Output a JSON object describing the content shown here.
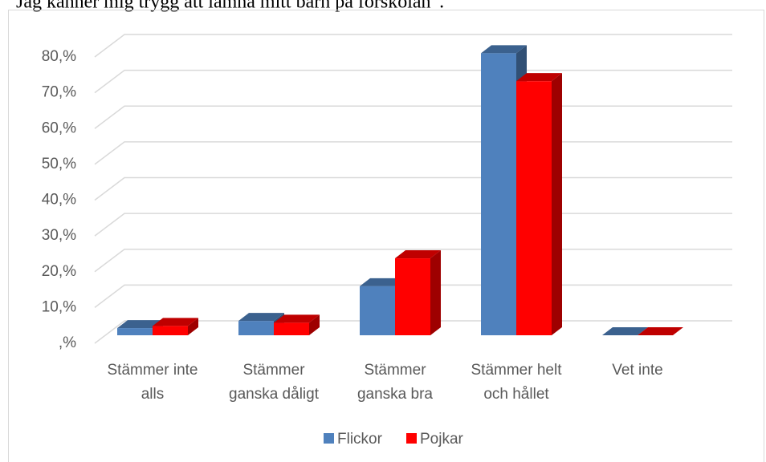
{
  "chart_data": {
    "type": "bar3d",
    "title": "Jag känner mig trygg att lämna mitt barn på förskolan”.",
    "categories": [
      [
        "Stämmer inte",
        "alls"
      ],
      [
        "Stämmer",
        "ganska dåligt"
      ],
      [
        "Stämmer",
        "ganska bra"
      ],
      [
        "Stämmer helt",
        "och hållet"
      ],
      [
        "Vet inte"
      ]
    ],
    "series": [
      {
        "name": "Flickor",
        "color": "#4f81bd",
        "values": [
          2,
          4,
          13.7,
          78.8,
          0
        ]
      },
      {
        "name": "Pojkar",
        "color": "#ff0000",
        "values": [
          2.6,
          3.5,
          21.5,
          71,
          0
        ]
      }
    ],
    "ylim": [
      0,
      80
    ],
    "yticks": [
      {
        "value": 0,
        "label": ",%"
      },
      {
        "value": 10,
        "label": "10,%"
      },
      {
        "value": 20,
        "label": "20,%"
      },
      {
        "value": 30,
        "label": "30,%"
      },
      {
        "value": 40,
        "label": "40,%"
      },
      {
        "value": 50,
        "label": "50,%"
      },
      {
        "value": 60,
        "label": "60,%"
      },
      {
        "value": 70,
        "label": "70,%"
      },
      {
        "value": 80,
        "label": "80,%"
      }
    ],
    "grid": true,
    "legend": "bottom"
  }
}
